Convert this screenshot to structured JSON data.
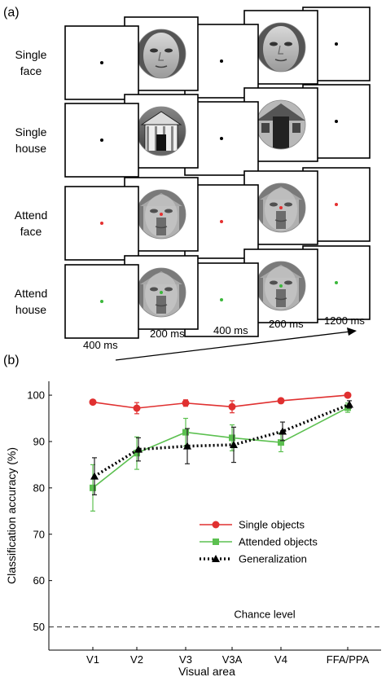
{
  "panel_a": {
    "label": "(a)",
    "rows": [
      {
        "label_line1": "Single",
        "label_line2": "face",
        "stimulus": "face",
        "fixation_color": "#000000"
      },
      {
        "label_line1": "Single",
        "label_line2": "house",
        "stimulus": "house",
        "fixation_color": "#000000"
      },
      {
        "label_line1": "Attend",
        "label_line2": "face",
        "stimulus": "overlay",
        "fixation_color": "#e53030"
      },
      {
        "label_line1": "Attend",
        "label_line2": "house",
        "stimulus": "overlay",
        "fixation_color": "#3cb83c"
      }
    ],
    "timings": [
      "400 ms",
      "200 ms",
      "400 ms",
      "200 ms",
      "1200 ms"
    ]
  },
  "panel_b": {
    "label": "(b)",
    "chance_label": "Chance level"
  },
  "chart_data": {
    "type": "line",
    "xlabel": "Visual area",
    "ylabel": "Classification accuracy (%)",
    "categories": [
      "V1",
      "V2",
      "V3",
      "V3A",
      "V4",
      "FFA/PPA"
    ],
    "ylim": [
      45,
      103
    ],
    "yticks": [
      50,
      60,
      70,
      80,
      90,
      100
    ],
    "chance_level": 50,
    "legend_position": "center-right",
    "series": [
      {
        "name": "Single objects",
        "color": "#e03030",
        "marker": "circle",
        "line": "solid",
        "values": [
          98.5,
          97.2,
          98.3,
          97.5,
          98.8,
          100.0
        ],
        "errors": [
          0.5,
          1.2,
          0.7,
          1.3,
          0.5,
          0.4
        ]
      },
      {
        "name": "Attended objects",
        "color": "#5cc050",
        "marker": "square",
        "line": "solid",
        "values": [
          80.0,
          87.5,
          92.0,
          90.8,
          89.8,
          97.3
        ],
        "errors": [
          5.0,
          3.5,
          3.0,
          2.8,
          2.0,
          1.0
        ]
      },
      {
        "name": "Generalization",
        "color": "#000000",
        "marker": "triangle",
        "line": "dotted",
        "values": [
          82.5,
          88.3,
          89.0,
          89.3,
          92.2,
          98.0
        ],
        "errors": [
          4.0,
          2.5,
          3.8,
          3.8,
          2.0,
          0.8
        ]
      }
    ]
  }
}
